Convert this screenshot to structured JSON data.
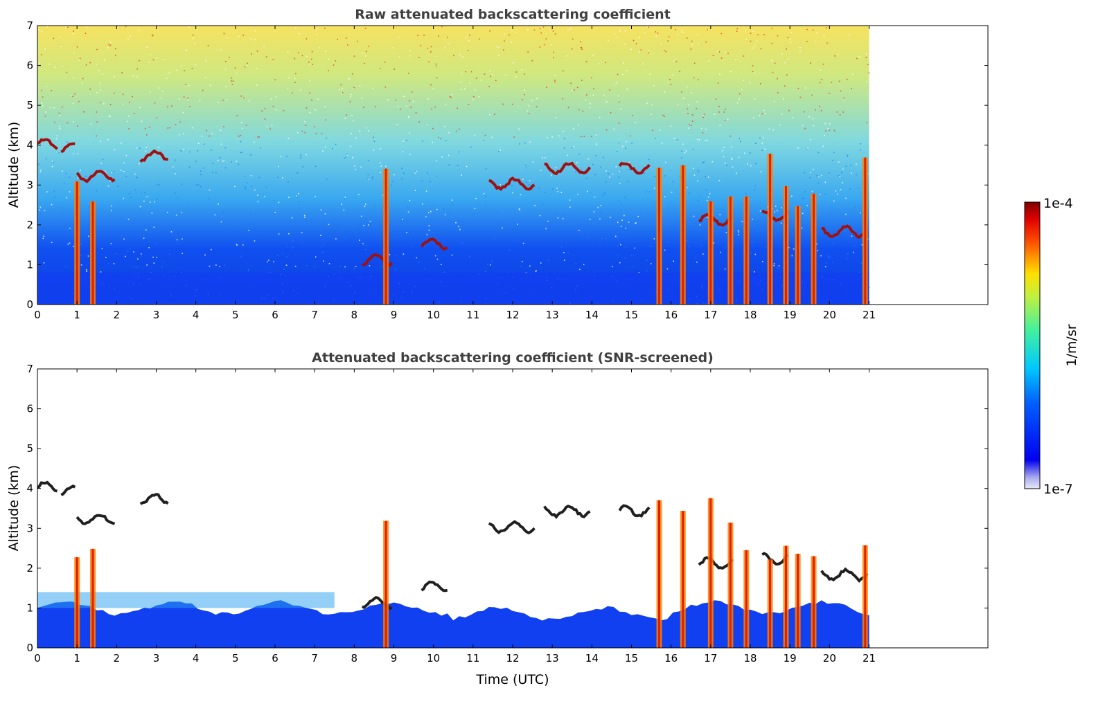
{
  "chart_data": [
    {
      "type": "heatmap",
      "title": "Raw attenuated backscattering coefficient",
      "xlabel": "",
      "ylabel": "Altitude (km)",
      "xlim": [
        0,
        24
      ],
      "ylim": [
        0,
        7
      ],
      "xticks": [
        "0",
        "1",
        "2",
        "3",
        "4",
        "5",
        "6",
        "7",
        "8",
        "9",
        "10",
        "11",
        "12",
        "13",
        "14",
        "15",
        "16",
        "17",
        "18",
        "19",
        "20",
        "21"
      ],
      "yticks": [
        "0",
        "1",
        "2",
        "3",
        "4",
        "5",
        "6",
        "7"
      ],
      "data_end_time": 21,
      "screened": false,
      "cloud_layers": [
        {
          "t_start": 0.0,
          "t_end": 0.5,
          "altitude": 4.0
        },
        {
          "t_start": 0.6,
          "t_end": 1.0,
          "altitude": 3.9
        },
        {
          "t_start": 1.0,
          "t_end": 2.0,
          "altitude": 3.2
        },
        {
          "t_start": 2.6,
          "t_end": 3.3,
          "altitude": 3.7
        },
        {
          "t_start": 8.2,
          "t_end": 9.0,
          "altitude": 1.1
        },
        {
          "t_start": 9.7,
          "t_end": 10.4,
          "altitude": 1.5
        },
        {
          "t_start": 11.4,
          "t_end": 12.6,
          "altitude": 3.0
        },
        {
          "t_start": 12.8,
          "t_end": 14.0,
          "altitude": 3.4
        },
        {
          "t_start": 14.7,
          "t_end": 15.5,
          "altitude": 3.4
        },
        {
          "t_start": 16.7,
          "t_end": 17.6,
          "altitude": 2.1
        },
        {
          "t_start": 18.3,
          "t_end": 19.0,
          "altitude": 2.2
        },
        {
          "t_start": 19.8,
          "t_end": 21.0,
          "altitude": 1.8
        }
      ],
      "precip_columns": [
        1.0,
        1.4,
        8.8,
        15.7,
        16.3,
        17.0,
        17.5,
        17.9,
        18.5,
        18.9,
        19.2,
        19.6,
        20.9
      ]
    },
    {
      "type": "heatmap",
      "title": "Attenuated backscattering coefficient (SNR-screened)",
      "xlabel": "Time (UTC)",
      "ylabel": "Altitude (km)",
      "xlim": [
        0,
        24
      ],
      "ylim": [
        0,
        7
      ],
      "xticks": [
        "0",
        "1",
        "2",
        "3",
        "4",
        "5",
        "6",
        "7",
        "8",
        "9",
        "10",
        "11",
        "12",
        "13",
        "14",
        "15",
        "16",
        "17",
        "18",
        "19",
        "20",
        "21"
      ],
      "yticks": [
        "0",
        "1",
        "2",
        "3",
        "4",
        "5",
        "6",
        "7"
      ],
      "data_end_time": 21,
      "screened": true,
      "cloud_layers": [
        {
          "t_start": 0.0,
          "t_end": 0.5,
          "altitude": 4.0
        },
        {
          "t_start": 0.6,
          "t_end": 1.0,
          "altitude": 3.9
        },
        {
          "t_start": 1.0,
          "t_end": 2.0,
          "altitude": 3.2
        },
        {
          "t_start": 2.6,
          "t_end": 3.3,
          "altitude": 3.7
        },
        {
          "t_start": 8.2,
          "t_end": 9.0,
          "altitude": 1.1
        },
        {
          "t_start": 9.7,
          "t_end": 10.4,
          "altitude": 1.5
        },
        {
          "t_start": 11.4,
          "t_end": 12.6,
          "altitude": 3.0
        },
        {
          "t_start": 12.8,
          "t_end": 14.0,
          "altitude": 3.4
        },
        {
          "t_start": 14.7,
          "t_end": 15.5,
          "altitude": 3.4
        },
        {
          "t_start": 16.7,
          "t_end": 17.6,
          "altitude": 2.1
        },
        {
          "t_start": 18.3,
          "t_end": 19.0,
          "altitude": 2.2
        },
        {
          "t_start": 19.8,
          "t_end": 21.0,
          "altitude": 1.8
        }
      ],
      "precip_columns": [
        1.0,
        1.4,
        8.8,
        15.7,
        16.3,
        17.0,
        17.5,
        17.9,
        18.5,
        18.9,
        19.2,
        19.6,
        20.9
      ]
    }
  ],
  "colorbar": {
    "label": "1/m/sr",
    "max_label": "1e-4",
    "min_label": "1e-7",
    "scale": "log",
    "range": [
      1e-07,
      0.0001
    ],
    "colormap": "jet"
  }
}
